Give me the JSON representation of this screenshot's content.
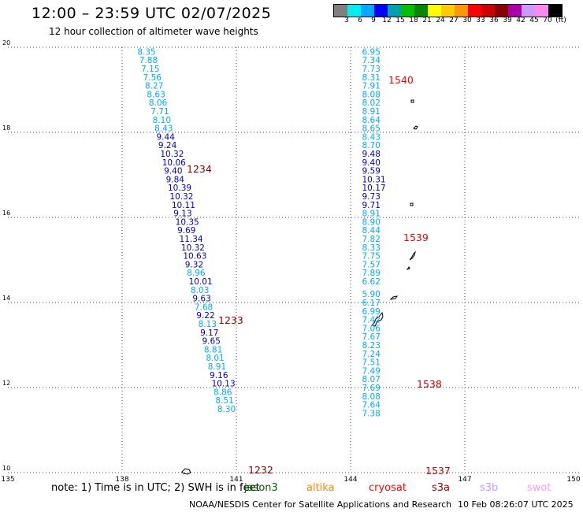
{
  "title": "12:00 – 23:59 UTC 02/07/2025",
  "subtitle": "12 hour collection of altimeter wave heights",
  "legend": {
    "colors": [
      "#808080",
      "#00eeee",
      "#00aaff",
      "#0000ff",
      "#00a0b0",
      "#00c000",
      "#008800",
      "#ffff00",
      "#ffcc00",
      "#ff9900",
      "#ff0000",
      "#cc0000",
      "#880000",
      "#aa00aa",
      "#cc99ff",
      "#ff88ee",
      "#000000"
    ],
    "labels": [
      "3",
      "6",
      "9",
      "12",
      "15",
      "18",
      "21",
      "24",
      "27",
      "30",
      "33",
      "36",
      "39",
      "42",
      "45",
      "70",
      "(ft)"
    ]
  },
  "chart_data": {
    "type": "map",
    "x_ticks": [
      "135",
      "138",
      "141",
      "144",
      "147",
      "150"
    ],
    "y_ticks": [
      "20",
      "18",
      "16",
      "14",
      "12",
      "10"
    ],
    "xlim": [
      135,
      150
    ],
    "ylim": [
      10,
      20
    ],
    "tracks": [
      {
        "time_labels": [
          "1234",
          "1233",
          "1232"
        ],
        "points": [
          {
            "v": "8.35",
            "lon": 138.4,
            "lat": 19.9
          },
          {
            "v": "7.88",
            "lon": 138.45,
            "lat": 19.7
          },
          {
            "v": "7.15",
            "lon": 138.5,
            "lat": 19.5
          },
          {
            "v": "7.56",
            "lon": 138.55,
            "lat": 19.3
          },
          {
            "v": "8.27",
            "lon": 138.6,
            "lat": 19.1
          },
          {
            "v": "8.63",
            "lon": 138.65,
            "lat": 18.9
          },
          {
            "v": "8.06",
            "lon": 138.7,
            "lat": 18.7
          },
          {
            "v": "7.71",
            "lon": 138.75,
            "lat": 18.5
          },
          {
            "v": "8.10",
            "lon": 138.8,
            "lat": 18.3
          },
          {
            "v": "8.43",
            "lon": 138.85,
            "lat": 18.1
          },
          {
            "v": "9.44",
            "lon": 138.9,
            "lat": 17.9
          },
          {
            "v": "9.24",
            "lon": 138.95,
            "lat": 17.7
          },
          {
            "v": "10.32",
            "lon": 139.0,
            "lat": 17.5
          },
          {
            "v": "10.06",
            "lon": 139.05,
            "lat": 17.3
          },
          {
            "v": "9.40",
            "lon": 139.1,
            "lat": 17.1
          },
          {
            "v": "9.84",
            "lon": 139.15,
            "lat": 16.9
          },
          {
            "v": "10.39",
            "lon": 139.2,
            "lat": 16.7
          },
          {
            "v": "10.32",
            "lon": 139.25,
            "lat": 16.5
          },
          {
            "v": "10.11",
            "lon": 139.3,
            "lat": 16.3
          },
          {
            "v": "9.13",
            "lon": 139.35,
            "lat": 16.1
          },
          {
            "v": "10.35",
            "lon": 139.4,
            "lat": 15.9
          },
          {
            "v": "9.69",
            "lon": 139.45,
            "lat": 15.7
          },
          {
            "v": "11.34",
            "lon": 139.5,
            "lat": 15.5
          },
          {
            "v": "10.32",
            "lon": 139.55,
            "lat": 15.3
          },
          {
            "v": "10.63",
            "lon": 139.6,
            "lat": 15.1
          },
          {
            "v": "9.32",
            "lon": 139.65,
            "lat": 14.9
          },
          {
            "v": "8.96",
            "lon": 139.7,
            "lat": 14.7
          },
          {
            "v": "10.01",
            "lon": 139.75,
            "lat": 14.5
          },
          {
            "v": "8.03",
            "lon": 139.8,
            "lat": 14.3
          },
          {
            "v": "9.63",
            "lon": 139.85,
            "lat": 14.1
          },
          {
            "v": "7.68",
            "lon": 139.9,
            "lat": 13.9
          },
          {
            "v": "9.22",
            "lon": 139.95,
            "lat": 13.7
          },
          {
            "v": "8.13",
            "lon": 140.0,
            "lat": 13.5
          },
          {
            "v": "9.17",
            "lon": 140.05,
            "lat": 13.3
          },
          {
            "v": "9.65",
            "lon": 140.1,
            "lat": 13.1
          },
          {
            "v": "8.81",
            "lon": 140.15,
            "lat": 12.9
          },
          {
            "v": "8.01",
            "lon": 140.2,
            "lat": 12.7
          },
          {
            "v": "8.91",
            "lon": 140.25,
            "lat": 12.5
          },
          {
            "v": "9.16",
            "lon": 140.3,
            "lat": 12.3
          },
          {
            "v": "10.13",
            "lon": 140.35,
            "lat": 12.1
          },
          {
            "v": "8.86",
            "lon": 140.4,
            "lat": 11.9
          },
          {
            "v": "8.51",
            "lon": 140.45,
            "lat": 11.7
          },
          {
            "v": "8.30",
            "lon": 140.5,
            "lat": 11.5
          }
        ]
      },
      {
        "time_labels": [
          "1540",
          "1539",
          "1538",
          "1537"
        ],
        "points": [
          {
            "v": "6.95",
            "lon": 144.3,
            "lat": 19.9
          },
          {
            "v": "7.34",
            "lon": 144.3,
            "lat": 19.7
          },
          {
            "v": "7.73",
            "lon": 144.3,
            "lat": 19.5
          },
          {
            "v": "8.31",
            "lon": 144.3,
            "lat": 19.3
          },
          {
            "v": "7.91",
            "lon": 144.3,
            "lat": 19.1
          },
          {
            "v": "8.08",
            "lon": 144.3,
            "lat": 18.9
          },
          {
            "v": "8.02",
            "lon": 144.3,
            "lat": 18.7
          },
          {
            "v": "8.91",
            "lon": 144.3,
            "lat": 18.5
          },
          {
            "v": "8.64",
            "lon": 144.3,
            "lat": 18.3
          },
          {
            "v": "8.65",
            "lon": 144.3,
            "lat": 18.1
          },
          {
            "v": "8.43",
            "lon": 144.3,
            "lat": 17.9
          },
          {
            "v": "8.70",
            "lon": 144.3,
            "lat": 17.7
          },
          {
            "v": "9.48",
            "lon": 144.3,
            "lat": 17.5
          },
          {
            "v": "9.40",
            "lon": 144.3,
            "lat": 17.3
          },
          {
            "v": "9.59",
            "lon": 144.3,
            "lat": 17.1
          },
          {
            "v": "10.31",
            "lon": 144.3,
            "lat": 16.9
          },
          {
            "v": "10.17",
            "lon": 144.3,
            "lat": 16.7
          },
          {
            "v": "9.73",
            "lon": 144.3,
            "lat": 16.5
          },
          {
            "v": "9.71",
            "lon": 144.3,
            "lat": 16.3
          },
          {
            "v": "8.91",
            "lon": 144.3,
            "lat": 16.1
          },
          {
            "v": "8.90",
            "lon": 144.3,
            "lat": 15.9
          },
          {
            "v": "8.44",
            "lon": 144.3,
            "lat": 15.7
          },
          {
            "v": "7.82",
            "lon": 144.3,
            "lat": 15.5
          },
          {
            "v": "8.33",
            "lon": 144.3,
            "lat": 15.3
          },
          {
            "v": "7.75",
            "lon": 144.3,
            "lat": 15.1
          },
          {
            "v": "7.57",
            "lon": 144.3,
            "lat": 14.9
          },
          {
            "v": "7.89",
            "lon": 144.3,
            "lat": 14.7
          },
          {
            "v": "6.62",
            "lon": 144.3,
            "lat": 14.5
          },
          {
            "v": "5.90",
            "lon": 144.3,
            "lat": 14.2
          },
          {
            "v": "6.17",
            "lon": 144.3,
            "lat": 14.0
          },
          {
            "v": "6.99",
            "lon": 144.3,
            "lat": 13.8
          },
          {
            "v": "7.42",
            "lon": 144.3,
            "lat": 13.6
          },
          {
            "v": "7.06",
            "lon": 144.3,
            "lat": 13.4
          },
          {
            "v": "7.67",
            "lon": 144.3,
            "lat": 13.2
          },
          {
            "v": "8.23",
            "lon": 144.3,
            "lat": 13.0
          },
          {
            "v": "7.24",
            "lon": 144.3,
            "lat": 12.8
          },
          {
            "v": "7.51",
            "lon": 144.3,
            "lat": 12.6
          },
          {
            "v": "7.49",
            "lon": 144.3,
            "lat": 12.4
          },
          {
            "v": "8.07",
            "lon": 144.3,
            "lat": 12.2
          },
          {
            "v": "7.69",
            "lon": 144.3,
            "lat": 12.0
          },
          {
            "v": "8.08",
            "lon": 144.3,
            "lat": 11.8
          },
          {
            "v": "7.64",
            "lon": 144.3,
            "lat": 11.6
          },
          {
            "v": "7.38",
            "lon": 144.3,
            "lat": 11.4
          }
        ]
      }
    ]
  },
  "footer": {
    "note": "note:  1) Time is in UTC; 2) SWH is in feet",
    "satellites": [
      {
        "name": "jason3",
        "color": "#006600"
      },
      {
        "name": "altika",
        "color": "#ff8800"
      },
      {
        "name": "cryosat",
        "color": "#ff0000"
      },
      {
        "name": "s3a",
        "color": "#990000"
      },
      {
        "name": "s3b",
        "color": "#cc99ff"
      },
      {
        "name": "swot",
        "color": "#ff99ee"
      }
    ],
    "credit": "NOAA/NESDIS Center for Satellite Applications and Research",
    "timestamp": "10 Feb 08:26:07 UTC 2025"
  }
}
